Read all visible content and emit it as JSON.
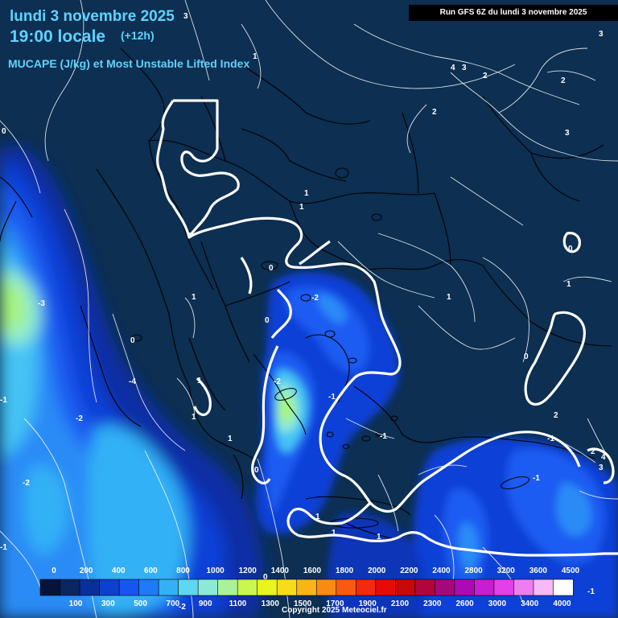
{
  "header": {
    "date": "lundi 3 novembre 2025",
    "time": "19:00 locale",
    "offset": "(+12h)",
    "parameter": "MUCAPE (J/kg) et Most Unstable Lifted Index",
    "run": "Run GFS 6Z du lundi 3 novembre 2025"
  },
  "legend": {
    "top_labels": [
      "0",
      "200",
      "400",
      "600",
      "800",
      "1000",
      "1200",
      "1400",
      "1600",
      "1800",
      "2000",
      "2200",
      "2400",
      "2800",
      "3200",
      "3600",
      "4500"
    ],
    "bottom_labels": [
      "100",
      "300",
      "500",
      "700",
      "900",
      "1100",
      "1300",
      "1500",
      "1700",
      "1900",
      "2100",
      "2300",
      "2600",
      "3000",
      "3400",
      "4000"
    ],
    "colors": [
      "#06133a",
      "#0b2660",
      "#0a2f9a",
      "#0d3fd1",
      "#1655f2",
      "#1f7af8",
      "#33b1f6",
      "#5ed7f0",
      "#8de9d7",
      "#a9f29a",
      "#c8f750",
      "#e8f51e",
      "#f8dc1c",
      "#f9b41a",
      "#f98a16",
      "#f85a12",
      "#f12a10",
      "#e50b0b",
      "#c6090a",
      "#b1063d",
      "#a4087b",
      "#ab0bb3",
      "#c51fd2",
      "#e240e8",
      "#f07cf2",
      "#f6b8f7",
      "#ffffff"
    ]
  },
  "contour_labels": [
    "3",
    "3",
    "4",
    "3",
    "2",
    "2",
    "3",
    "2",
    "1",
    "1",
    "1",
    "0",
    "0",
    "1",
    "1",
    "0",
    "0",
    "0",
    "-2",
    "-3",
    "1",
    "1",
    "0",
    "-4",
    "1",
    "-2",
    "-1",
    "-2",
    "-2",
    "-1",
    "0",
    "-1",
    "1",
    "-1",
    "-1",
    "2",
    "2",
    "4",
    "3",
    "1",
    "1",
    "1",
    "0",
    "-1",
    "-2",
    "0",
    "-1"
  ],
  "colors": {
    "title": "#5fd3ff",
    "background": "#0c2f52",
    "contour": "#ffffff"
  },
  "copyright": "Copyright 2025 Meteociel.fr"
}
